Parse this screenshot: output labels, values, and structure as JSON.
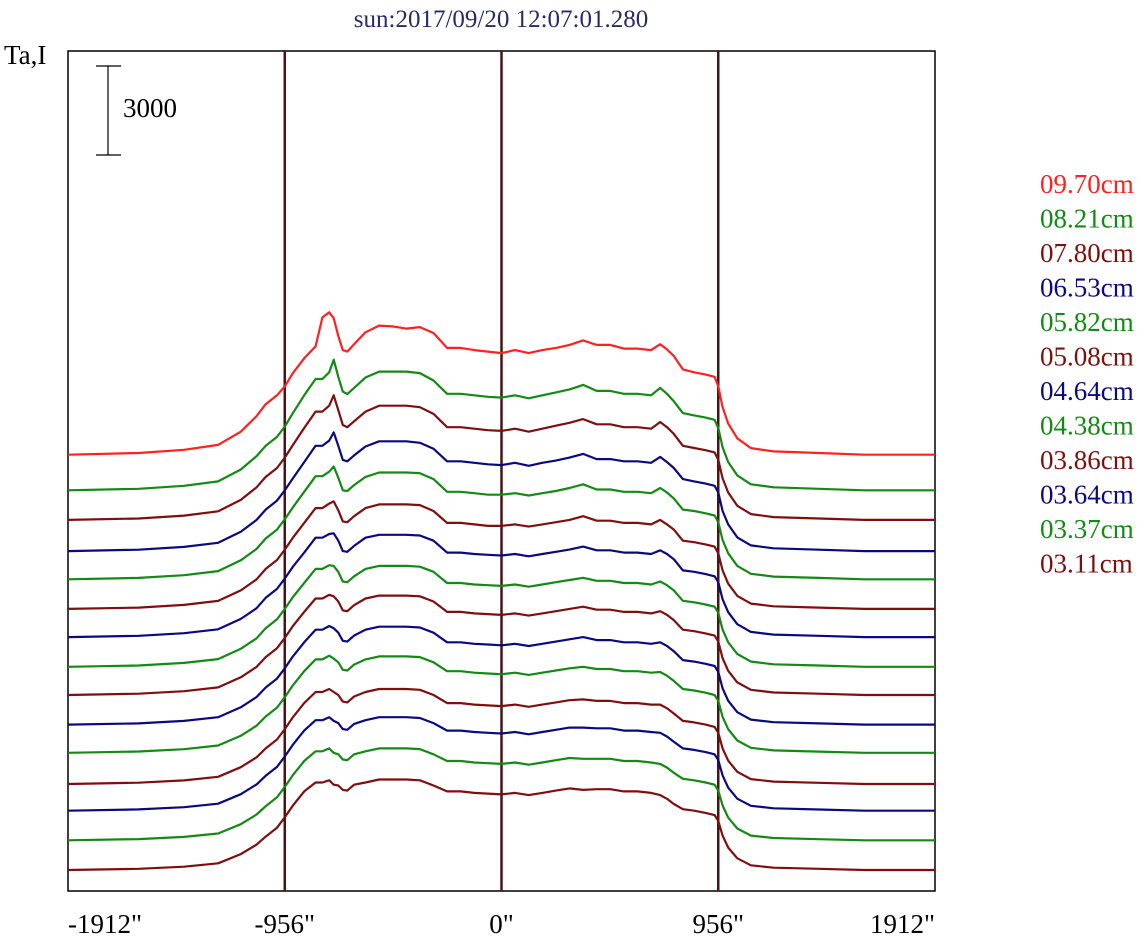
{
  "colors": {
    "red": "#ff2020",
    "green": "#138a13",
    "darkred": "#7f0f0f",
    "blue": "#0a0a80",
    "frame": "#000000",
    "marker": "#4a1414",
    "title": "#2a2a6a"
  },
  "chart_data": {
    "type": "line",
    "title": "sun:2017/09/20 12:07:01.280",
    "ylabel": "Ta,I",
    "xlim": [
      -1912,
      1912
    ],
    "x_ticks": [
      -1912,
      -956,
      0,
      956,
      1912
    ],
    "x_tick_labels": [
      "-1912\"",
      "-956\"",
      "0\"",
      "956\"",
      "1912\""
    ],
    "vertical_markers": [
      -956,
      0,
      956
    ],
    "scale_bar": {
      "value": 3000,
      "label": "3000"
    },
    "grid": false,
    "legend_position": "right",
    "x": [
      -1912,
      -1600,
      -1400,
      -1250,
      -1150,
      -1080,
      -1040,
      -990,
      -956,
      -920,
      -870,
      -820,
      -790,
      -760,
      -740,
      -720,
      -700,
      -680,
      -650,
      -600,
      -540,
      -480,
      -420,
      -360,
      -300,
      -240,
      -180,
      -120,
      -60,
      0,
      60,
      120,
      180,
      240,
      300,
      360,
      420,
      480,
      540,
      600,
      660,
      700,
      730,
      760,
      800,
      850,
      900,
      940,
      956,
      975,
      1000,
      1040,
      1100,
      1200,
      1400,
      1600,
      1912
    ],
    "series": [
      {
        "name": "09.70cm",
        "color": "red",
        "offset": 1500,
        "values": [
          0,
          110,
          330,
          660,
          1550,
          2600,
          3400,
          4000,
          4600,
          5500,
          6500,
          7300,
          9250,
          9600,
          9200,
          8000,
          7050,
          6950,
          7450,
          8250,
          8700,
          8650,
          8500,
          8600,
          8200,
          7200,
          7200,
          7050,
          6950,
          6850,
          7050,
          6850,
          7050,
          7200,
          7400,
          7700,
          7400,
          7400,
          7150,
          7150,
          7050,
          7450,
          7100,
          6650,
          5750,
          5550,
          5400,
          5250,
          4600,
          3200,
          2100,
          1100,
          440,
          220,
          110,
          0,
          0
        ]
      },
      {
        "name": "08.21cm",
        "color": "green",
        "offset": 0,
        "values": [
          0,
          100,
          300,
          600,
          1400,
          2300,
          3000,
          3600,
          4300,
          5200,
          6400,
          7500,
          7500,
          7950,
          8800,
          7650,
          6650,
          6480,
          6900,
          7600,
          8000,
          8000,
          8000,
          7900,
          7400,
          6500,
          6500,
          6400,
          6300,
          6250,
          6400,
          6200,
          6400,
          6600,
          6800,
          7100,
          6700,
          6700,
          6500,
          6500,
          6400,
          6900,
          6500,
          6000,
          5200,
          5050,
          4900,
          4750,
          4200,
          2900,
          1900,
          1000,
          400,
          200,
          100,
          0,
          0
        ]
      },
      {
        "name": "07.80cm",
        "color": "darkred",
        "offset": 0,
        "values": [
          0,
          100,
          290,
          580,
          1350,
          2200,
          2900,
          3500,
          4200,
          5050,
          6200,
          7300,
          7300,
          7700,
          8400,
          7400,
          6400,
          6250,
          6650,
          7300,
          7700,
          7700,
          7700,
          7600,
          7150,
          6250,
          6250,
          6150,
          6050,
          6000,
          6150,
          5950,
          6150,
          6350,
          6550,
          6800,
          6450,
          6450,
          6250,
          6250,
          6150,
          6600,
          6250,
          5800,
          5000,
          4850,
          4700,
          4550,
          4050,
          2800,
          1850,
          950,
          390,
          190,
          95,
          0,
          0
        ]
      },
      {
        "name": "06.53cm",
        "color": "blue",
        "offset": 0,
        "values": [
          0,
          95,
          280,
          560,
          1300,
          2100,
          2800,
          3400,
          4100,
          4900,
          6000,
          7100,
          7100,
          7450,
          8000,
          7100,
          6150,
          6050,
          6450,
          7050,
          7400,
          7400,
          7400,
          7300,
          6900,
          6050,
          6050,
          5950,
          5850,
          5800,
          5950,
          5750,
          5950,
          6100,
          6300,
          6550,
          6200,
          6200,
          6050,
          6050,
          5950,
          6350,
          6000,
          5600,
          4850,
          4700,
          4550,
          4400,
          3950,
          2700,
          1800,
          920,
          380,
          185,
          92,
          0,
          0
        ]
      },
      {
        "name": "05.82cm",
        "color": "green",
        "offset": 0,
        "values": [
          0,
          95,
          275,
          550,
          1280,
          2050,
          2750,
          3350,
          4050,
          4850,
          5900,
          6950,
          6950,
          7250,
          7600,
          6850,
          6000,
          5950,
          6350,
          6900,
          7200,
          7200,
          7200,
          7150,
          6750,
          5900,
          5900,
          5800,
          5700,
          5700,
          5800,
          5650,
          5800,
          5950,
          6150,
          6400,
          6050,
          6050,
          5900,
          5900,
          5800,
          6150,
          5850,
          5450,
          4700,
          4600,
          4450,
          4300,
          3850,
          2650,
          1750,
          900,
          370,
          180,
          90,
          0,
          0
        ]
      },
      {
        "name": "05.08cm",
        "color": "darkred",
        "offset": 0,
        "values": [
          0,
          90,
          270,
          540,
          1250,
          2000,
          2700,
          3300,
          4000,
          4800,
          5800,
          6800,
          6800,
          7100,
          7250,
          6650,
          5900,
          5850,
          6250,
          6800,
          7050,
          7050,
          7050,
          7000,
          6600,
          5800,
          5800,
          5700,
          5600,
          5600,
          5700,
          5550,
          5700,
          5850,
          6000,
          6250,
          5950,
          5950,
          5800,
          5800,
          5700,
          6000,
          5700,
          5350,
          4600,
          4500,
          4350,
          4200,
          3750,
          2600,
          1700,
          880,
          360,
          175,
          88,
          0,
          0
        ]
      },
      {
        "name": "04.64cm",
        "color": "blue",
        "offset": 0,
        "values": [
          0,
          90,
          265,
          530,
          1230,
          1950,
          2650,
          3250,
          3950,
          4750,
          5700,
          6700,
          6700,
          6950,
          7000,
          6500,
          5800,
          5750,
          6150,
          6700,
          6900,
          6900,
          6900,
          6850,
          6500,
          5700,
          5700,
          5600,
          5550,
          5500,
          5600,
          5450,
          5600,
          5750,
          5900,
          6100,
          5850,
          5850,
          5700,
          5700,
          5600,
          5850,
          5600,
          5250,
          4500,
          4400,
          4250,
          4100,
          3700,
          2550,
          1680,
          870,
          355,
          172,
          86,
          0,
          0
        ]
      },
      {
        "name": "04.38cm",
        "color": "green",
        "offset": 0,
        "values": [
          0,
          88,
          260,
          520,
          1210,
          1920,
          2600,
          3200,
          3900,
          4700,
          5650,
          6600,
          6600,
          6850,
          6800,
          6400,
          5750,
          5700,
          6100,
          6600,
          6800,
          6800,
          6800,
          6750,
          6400,
          5650,
          5650,
          5550,
          5500,
          5450,
          5550,
          5400,
          5550,
          5700,
          5850,
          6000,
          5800,
          5800,
          5650,
          5650,
          5550,
          5750,
          5500,
          5150,
          4450,
          4350,
          4200,
          4050,
          3650,
          2500,
          1650,
          860,
          350,
          170,
          85,
          0,
          0
        ]
      },
      {
        "name": "03.86cm",
        "color": "darkred",
        "offset": 0,
        "values": [
          0,
          88,
          255,
          510,
          1190,
          1890,
          2550,
          3150,
          3850,
          4650,
          5600,
          6500,
          6500,
          6750,
          6650,
          6300,
          5700,
          5650,
          6050,
          6500,
          6700,
          6700,
          6700,
          6650,
          6300,
          5600,
          5600,
          5500,
          5450,
          5400,
          5500,
          5350,
          5500,
          5650,
          5800,
          5950,
          5750,
          5750,
          5600,
          5600,
          5500,
          5650,
          5400,
          5050,
          4400,
          4300,
          4150,
          4000,
          3600,
          2480,
          1630,
          850,
          345,
          168,
          84,
          0,
          0
        ]
      },
      {
        "name": "03.64cm",
        "color": "blue",
        "offset": 0,
        "values": [
          0,
          86,
          250,
          500,
          1170,
          1860,
          2500,
          3100,
          3800,
          4600,
          5550,
          6400,
          6400,
          6650,
          6500,
          6200,
          5650,
          5600,
          6000,
          6400,
          6600,
          6600,
          6600,
          6550,
          6200,
          5550,
          5550,
          5450,
          5400,
          5350,
          5450,
          5300,
          5450,
          5600,
          5750,
          5900,
          5700,
          5700,
          5550,
          5550,
          5450,
          5550,
          5300,
          4950,
          4350,
          4250,
          4100,
          3950,
          3550,
          2450,
          1610,
          840,
          340,
          166,
          83,
          0,
          0
        ]
      },
      {
        "name": "03.37cm",
        "color": "green",
        "offset": 0,
        "values": [
          0,
          86,
          245,
          490,
          1150,
          1830,
          2450,
          3050,
          3750,
          4550,
          5500,
          6300,
          6300,
          6550,
          6350,
          6100,
          5600,
          5550,
          5950,
          6300,
          6500,
          6500,
          6500,
          6450,
          6100,
          5500,
          5500,
          5400,
          5350,
          5300,
          5400,
          5250,
          5400,
          5550,
          5700,
          5800,
          5650,
          5650,
          5500,
          5500,
          5400,
          5450,
          5200,
          4850,
          4300,
          4200,
          4050,
          3900,
          3500,
          2420,
          1590,
          830,
          335,
          164,
          82,
          0,
          0
        ]
      },
      {
        "name": "03.11cm",
        "color": "darkred",
        "offset": 0,
        "values": [
          0,
          84,
          240,
          480,
          1130,
          1800,
          2400,
          3000,
          3700,
          4500,
          5450,
          6200,
          6200,
          6400,
          6200,
          6000,
          5550,
          5500,
          5900,
          6200,
          6400,
          6400,
          6400,
          6350,
          6000,
          5450,
          5450,
          5350,
          5300,
          5250,
          5350,
          5200,
          5350,
          5500,
          5650,
          5700,
          5600,
          5600,
          5450,
          5450,
          5350,
          5350,
          5100,
          4750,
          4250,
          4150,
          4000,
          3850,
          3450,
          2400,
          1570,
          820,
          330,
          162,
          81,
          0,
          0
        ]
      },
      {
        "color": "blue",
        "offset": 0,
        "values": [
          0,
          84,
          235,
          470,
          1110,
          1770,
          2350,
          2950,
          3650,
          4450,
          5400,
          6100,
          6100,
          6300,
          6050,
          5900,
          5500,
          5450,
          5850,
          6100,
          6300,
          6300,
          6300,
          6250,
          5900,
          5400,
          5400,
          5300,
          5250,
          5200,
          5300,
          5150,
          5300,
          5450,
          5600,
          5600,
          5550,
          5550,
          5400,
          5400,
          5300,
          5250,
          5000,
          4650,
          4200,
          4100,
          3950,
          3800,
          3400,
          2380,
          1550,
          810,
          325,
          160,
          80,
          0,
          0
        ]
      },
      {
        "color": "green",
        "offset": 0,
        "values": [
          0,
          82,
          230,
          460,
          1090,
          1740,
          2300,
          2900,
          3600,
          4400,
          5350,
          6000,
          6000,
          6200,
          5900,
          5800,
          5450,
          5400,
          5800,
          6000,
          6200,
          6200,
          6200,
          6150,
          5800,
          5350,
          5350,
          5250,
          5200,
          5150,
          5250,
          5100,
          5250,
          5400,
          5550,
          5500,
          5500,
          5500,
          5350,
          5350,
          5250,
          5150,
          4900,
          4550,
          4150,
          4050,
          3900,
          3750,
          3350,
          2350,
          1530,
          800,
          320,
          158,
          79,
          0,
          0
        ]
      },
      {
        "color": "darkred",
        "offset": 0,
        "values": [
          0,
          80,
          225,
          450,
          1070,
          1710,
          2250,
          2850,
          3550,
          4350,
          5300,
          5900,
          5900,
          6050,
          5750,
          5700,
          5400,
          5350,
          5750,
          5900,
          6100,
          6100,
          6100,
          6050,
          5700,
          5300,
          5300,
          5200,
          5150,
          5100,
          5200,
          5050,
          5200,
          5350,
          5500,
          5400,
          5450,
          5450,
          5300,
          5300,
          5200,
          5050,
          4800,
          4450,
          4100,
          4000,
          3850,
          3700,
          3300,
          2320,
          1510,
          790,
          315,
          156,
          78,
          0,
          0
        ]
      }
    ],
    "baselines": [
      13000,
      11800,
      10800,
      9750,
      8800,
      7800,
      6850,
      5850,
      4900,
      3900,
      2950,
      1900,
      1000,
      0,
      -1000
    ]
  }
}
